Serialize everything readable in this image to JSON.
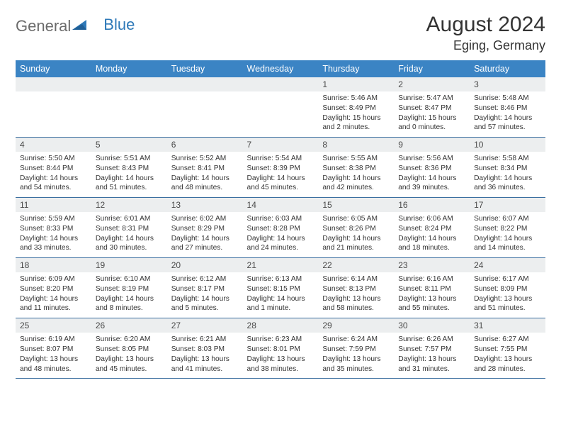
{
  "logo": {
    "general": "General",
    "blue": "Blue"
  },
  "title": "August 2024",
  "location": "Eging, Germany",
  "colors": {
    "header_bg": "#3b84c4",
    "header_text": "#ffffff",
    "daynum_bg": "#eceeef",
    "row_border": "#3b6fa0",
    "logo_gray": "#6b6b6b",
    "logo_blue": "#2e79b8"
  },
  "day_names": [
    "Sunday",
    "Monday",
    "Tuesday",
    "Wednesday",
    "Thursday",
    "Friday",
    "Saturday"
  ],
  "weeks": [
    [
      {
        "n": "",
        "lines": []
      },
      {
        "n": "",
        "lines": []
      },
      {
        "n": "",
        "lines": []
      },
      {
        "n": "",
        "lines": []
      },
      {
        "n": "1",
        "lines": [
          "Sunrise: 5:46 AM",
          "Sunset: 8:49 PM",
          "Daylight: 15 hours",
          "and 2 minutes."
        ]
      },
      {
        "n": "2",
        "lines": [
          "Sunrise: 5:47 AM",
          "Sunset: 8:47 PM",
          "Daylight: 15 hours",
          "and 0 minutes."
        ]
      },
      {
        "n": "3",
        "lines": [
          "Sunrise: 5:48 AM",
          "Sunset: 8:46 PM",
          "Daylight: 14 hours",
          "and 57 minutes."
        ]
      }
    ],
    [
      {
        "n": "4",
        "lines": [
          "Sunrise: 5:50 AM",
          "Sunset: 8:44 PM",
          "Daylight: 14 hours",
          "and 54 minutes."
        ]
      },
      {
        "n": "5",
        "lines": [
          "Sunrise: 5:51 AM",
          "Sunset: 8:43 PM",
          "Daylight: 14 hours",
          "and 51 minutes."
        ]
      },
      {
        "n": "6",
        "lines": [
          "Sunrise: 5:52 AM",
          "Sunset: 8:41 PM",
          "Daylight: 14 hours",
          "and 48 minutes."
        ]
      },
      {
        "n": "7",
        "lines": [
          "Sunrise: 5:54 AM",
          "Sunset: 8:39 PM",
          "Daylight: 14 hours",
          "and 45 minutes."
        ]
      },
      {
        "n": "8",
        "lines": [
          "Sunrise: 5:55 AM",
          "Sunset: 8:38 PM",
          "Daylight: 14 hours",
          "and 42 minutes."
        ]
      },
      {
        "n": "9",
        "lines": [
          "Sunrise: 5:56 AM",
          "Sunset: 8:36 PM",
          "Daylight: 14 hours",
          "and 39 minutes."
        ]
      },
      {
        "n": "10",
        "lines": [
          "Sunrise: 5:58 AM",
          "Sunset: 8:34 PM",
          "Daylight: 14 hours",
          "and 36 minutes."
        ]
      }
    ],
    [
      {
        "n": "11",
        "lines": [
          "Sunrise: 5:59 AM",
          "Sunset: 8:33 PM",
          "Daylight: 14 hours",
          "and 33 minutes."
        ]
      },
      {
        "n": "12",
        "lines": [
          "Sunrise: 6:01 AM",
          "Sunset: 8:31 PM",
          "Daylight: 14 hours",
          "and 30 minutes."
        ]
      },
      {
        "n": "13",
        "lines": [
          "Sunrise: 6:02 AM",
          "Sunset: 8:29 PM",
          "Daylight: 14 hours",
          "and 27 minutes."
        ]
      },
      {
        "n": "14",
        "lines": [
          "Sunrise: 6:03 AM",
          "Sunset: 8:28 PM",
          "Daylight: 14 hours",
          "and 24 minutes."
        ]
      },
      {
        "n": "15",
        "lines": [
          "Sunrise: 6:05 AM",
          "Sunset: 8:26 PM",
          "Daylight: 14 hours",
          "and 21 minutes."
        ]
      },
      {
        "n": "16",
        "lines": [
          "Sunrise: 6:06 AM",
          "Sunset: 8:24 PM",
          "Daylight: 14 hours",
          "and 18 minutes."
        ]
      },
      {
        "n": "17",
        "lines": [
          "Sunrise: 6:07 AM",
          "Sunset: 8:22 PM",
          "Daylight: 14 hours",
          "and 14 minutes."
        ]
      }
    ],
    [
      {
        "n": "18",
        "lines": [
          "Sunrise: 6:09 AM",
          "Sunset: 8:20 PM",
          "Daylight: 14 hours",
          "and 11 minutes."
        ]
      },
      {
        "n": "19",
        "lines": [
          "Sunrise: 6:10 AM",
          "Sunset: 8:19 PM",
          "Daylight: 14 hours",
          "and 8 minutes."
        ]
      },
      {
        "n": "20",
        "lines": [
          "Sunrise: 6:12 AM",
          "Sunset: 8:17 PM",
          "Daylight: 14 hours",
          "and 5 minutes."
        ]
      },
      {
        "n": "21",
        "lines": [
          "Sunrise: 6:13 AM",
          "Sunset: 8:15 PM",
          "Daylight: 14 hours",
          "and 1 minute."
        ]
      },
      {
        "n": "22",
        "lines": [
          "Sunrise: 6:14 AM",
          "Sunset: 8:13 PM",
          "Daylight: 13 hours",
          "and 58 minutes."
        ]
      },
      {
        "n": "23",
        "lines": [
          "Sunrise: 6:16 AM",
          "Sunset: 8:11 PM",
          "Daylight: 13 hours",
          "and 55 minutes."
        ]
      },
      {
        "n": "24",
        "lines": [
          "Sunrise: 6:17 AM",
          "Sunset: 8:09 PM",
          "Daylight: 13 hours",
          "and 51 minutes."
        ]
      }
    ],
    [
      {
        "n": "25",
        "lines": [
          "Sunrise: 6:19 AM",
          "Sunset: 8:07 PM",
          "Daylight: 13 hours",
          "and 48 minutes."
        ]
      },
      {
        "n": "26",
        "lines": [
          "Sunrise: 6:20 AM",
          "Sunset: 8:05 PM",
          "Daylight: 13 hours",
          "and 45 minutes."
        ]
      },
      {
        "n": "27",
        "lines": [
          "Sunrise: 6:21 AM",
          "Sunset: 8:03 PM",
          "Daylight: 13 hours",
          "and 41 minutes."
        ]
      },
      {
        "n": "28",
        "lines": [
          "Sunrise: 6:23 AM",
          "Sunset: 8:01 PM",
          "Daylight: 13 hours",
          "and 38 minutes."
        ]
      },
      {
        "n": "29",
        "lines": [
          "Sunrise: 6:24 AM",
          "Sunset: 7:59 PM",
          "Daylight: 13 hours",
          "and 35 minutes."
        ]
      },
      {
        "n": "30",
        "lines": [
          "Sunrise: 6:26 AM",
          "Sunset: 7:57 PM",
          "Daylight: 13 hours",
          "and 31 minutes."
        ]
      },
      {
        "n": "31",
        "lines": [
          "Sunrise: 6:27 AM",
          "Sunset: 7:55 PM",
          "Daylight: 13 hours",
          "and 28 minutes."
        ]
      }
    ]
  ]
}
